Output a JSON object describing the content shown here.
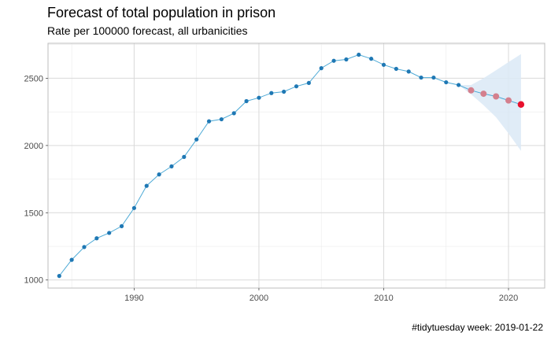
{
  "chart_data": {
    "type": "line",
    "title": "Forecast of total population in prison",
    "subtitle": "Rate per 100000 forecast, all urbanicities",
    "caption": "#tidytuesday week: 2019-01-22",
    "xlabel": "",
    "ylabel": "",
    "xlim": [
      1983.1,
      2022.9
    ],
    "ylim": [
      940,
      2760
    ],
    "x_ticks": [
      1990,
      2000,
      2010,
      2020
    ],
    "y_ticks": [
      1000,
      1500,
      2000,
      2500
    ],
    "grid": true,
    "colors": {
      "observed": "#1f78b4",
      "line": "#4eaad6",
      "forecast_point": "#d47f8d",
      "last_point": "#e8112d",
      "ribbon": "#dbe9f6",
      "grid_major": "#d9d9d9",
      "grid_minor": "#ebebeb",
      "panel_border": "#bdbdbd"
    },
    "observed": {
      "x": [
        1984,
        1985,
        1986,
        1987,
        1988,
        1989,
        1990,
        1991,
        1992,
        1993,
        1994,
        1995,
        1996,
        1997,
        1998,
        1999,
        2000,
        2001,
        2002,
        2003,
        2004,
        2005,
        2006,
        2007,
        2008,
        2009,
        2010,
        2011,
        2012,
        2013,
        2014,
        2015,
        2016
      ],
      "y": [
        1030,
        1150,
        1245,
        1310,
        1350,
        1400,
        1535,
        1700,
        1785,
        1845,
        1915,
        2045,
        2180,
        2195,
        2240,
        2330,
        2355,
        2390,
        2400,
        2440,
        2465,
        2575,
        2630,
        2640,
        2675,
        2645,
        2600,
        2570,
        2550,
        2505,
        2505,
        2470,
        2450
      ]
    },
    "forecast": {
      "x": [
        2017,
        2018,
        2019,
        2020,
        2021
      ],
      "y": [
        2410,
        2385,
        2365,
        2335,
        2305
      ],
      "lower": [
        2380,
        2300,
        2210,
        2090,
        1960
      ],
      "upper": [
        2450,
        2500,
        2560,
        2620,
        2680
      ]
    }
  }
}
